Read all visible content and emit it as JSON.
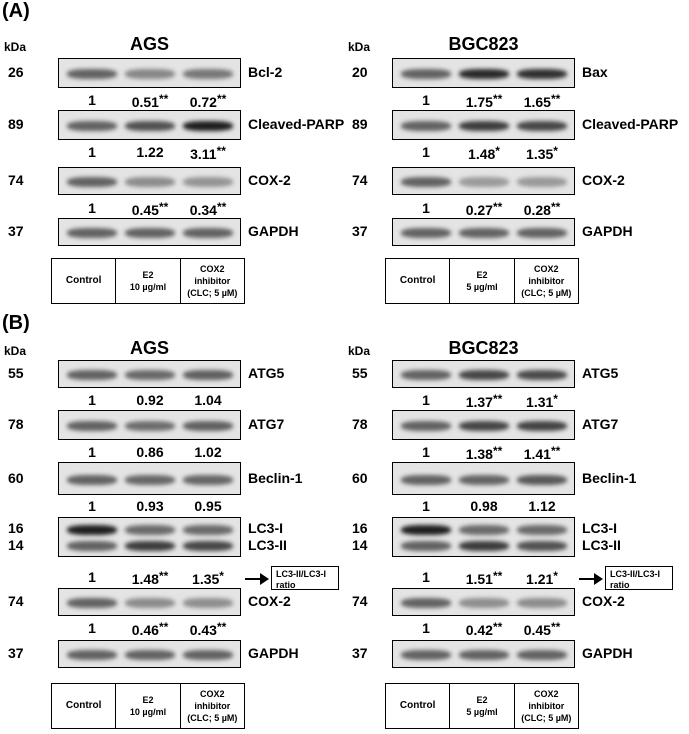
{
  "panels": [
    {
      "label": "(A)",
      "groups": [
        {
          "title": "AGS",
          "kda_label": "kDa",
          "conditions": [
            "Control",
            "E2\n10 µg/ml",
            "COX2\ninhibitor\n(CLC; 5 µM)"
          ],
          "blots": [
            {
              "mw": [
                "26"
              ],
              "protein": [
                "Bcl-2"
              ],
              "values": [
                "1",
                "0.51",
                "0.72"
              ],
              "stars": [
                "",
                "**",
                "**"
              ]
            },
            {
              "mw": [
                "89"
              ],
              "protein": [
                "Cleaved-PARP"
              ],
              "values": [
                "1",
                "1.22",
                "3.11"
              ],
              "stars": [
                "",
                "",
                "**"
              ]
            },
            {
              "mw": [
                "74"
              ],
              "protein": [
                "COX-2"
              ],
              "values": [
                "1",
                "0.45",
                "0.34"
              ],
              "stars": [
                "",
                "**",
                "**"
              ]
            },
            {
              "mw": [
                "37"
              ],
              "protein": [
                "GAPDH"
              ],
              "values": [],
              "stars": []
            }
          ]
        },
        {
          "title": "BGC823",
          "kda_label": "kDa",
          "conditions": [
            "Control",
            "E2\n5 µg/ml",
            "COX2\ninhibitor\n(CLC; 5 µM)"
          ],
          "blots": [
            {
              "mw": [
                "20"
              ],
              "protein": [
                "Bax"
              ],
              "values": [
                "1",
                "1.75",
                "1.65"
              ],
              "stars": [
                "",
                "**",
                "**"
              ]
            },
            {
              "mw": [
                "89"
              ],
              "protein": [
                "Cleaved-PARP"
              ],
              "values": [
                "1",
                "1.48",
                "1.35"
              ],
              "stars": [
                "",
                "*",
                "*"
              ]
            },
            {
              "mw": [
                "74"
              ],
              "protein": [
                "COX-2"
              ],
              "values": [
                "1",
                "0.27",
                "0.28"
              ],
              "stars": [
                "",
                "**",
                "**"
              ]
            },
            {
              "mw": [
                "37"
              ],
              "protein": [
                "GAPDH"
              ],
              "values": [],
              "stars": []
            }
          ]
        }
      ]
    },
    {
      "label": "(B)",
      "groups": [
        {
          "title": "AGS",
          "kda_label": "kDa",
          "conditions": [
            "Control",
            "E2\n10 µg/ml",
            "COX2\ninhibitor\n(CLC; 5 µM)"
          ],
          "ratio_label": "LC3-II/LC3-I\nratio",
          "blots": [
            {
              "mw": [
                "55"
              ],
              "protein": [
                "ATG5"
              ],
              "values": [
                "1",
                "0.92",
                "1.04"
              ],
              "stars": [
                "",
                "",
                ""
              ]
            },
            {
              "mw": [
                "78"
              ],
              "protein": [
                "ATG7"
              ],
              "values": [
                "1",
                "0.86",
                "1.02"
              ],
              "stars": [
                "",
                "",
                ""
              ]
            },
            {
              "mw": [
                "60"
              ],
              "protein": [
                "Beclin-1"
              ],
              "values": [
                "1",
                "0.93",
                "0.95"
              ],
              "stars": [
                "",
                "",
                ""
              ]
            },
            {
              "mw": [
                "16",
                "14"
              ],
              "protein": [
                "LC3-I",
                "LC3-II"
              ],
              "values": [
                "1",
                "1.48",
                "1.35"
              ],
              "stars": [
                "",
                "**",
                "*"
              ]
            },
            {
              "mw": [
                "74"
              ],
              "protein": [
                "COX-2"
              ],
              "values": [
                "1",
                "0.46",
                "0.43"
              ],
              "stars": [
                "",
                "**",
                "**"
              ]
            },
            {
              "mw": [
                "37"
              ],
              "protein": [
                "GAPDH"
              ],
              "values": [],
              "stars": []
            }
          ]
        },
        {
          "title": "BGC823",
          "kda_label": "kDa",
          "conditions": [
            "Control",
            "E2\n5 µg/ml",
            "COX2\ninhibitor\n(CLC; 5 µM)"
          ],
          "ratio_label": "LC3-II/LC3-I\nratio",
          "blots": [
            {
              "mw": [
                "55"
              ],
              "protein": [
                "ATG5"
              ],
              "values": [
                "1",
                "1.37",
                "1.31"
              ],
              "stars": [
                "",
                "**",
                "*"
              ]
            },
            {
              "mw": [
                "78"
              ],
              "protein": [
                "ATG7"
              ],
              "values": [
                "1",
                "1.38",
                "1.41"
              ],
              "stars": [
                "",
                "**",
                "**"
              ]
            },
            {
              "mw": [
                "60"
              ],
              "protein": [
                "Beclin-1"
              ],
              "values": [
                "1",
                "0.98",
                "1.12"
              ],
              "stars": [
                "",
                "",
                ""
              ]
            },
            {
              "mw": [
                "16",
                "14"
              ],
              "protein": [
                "LC3-I",
                "LC3-II"
              ],
              "values": [
                "1",
                "1.51",
                "1.21"
              ],
              "stars": [
                "",
                "**",
                "*"
              ]
            },
            {
              "mw": [
                "74"
              ],
              "protein": [
                "COX-2"
              ],
              "values": [
                "1",
                "0.42",
                "0.45"
              ],
              "stars": [
                "",
                "**",
                "**"
              ]
            },
            {
              "mw": [
                "37"
              ],
              "protein": [
                "GAPDH"
              ],
              "values": [],
              "stars": []
            }
          ]
        }
      ]
    }
  ]
}
